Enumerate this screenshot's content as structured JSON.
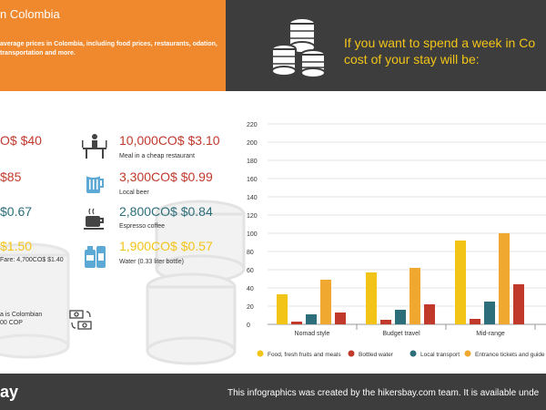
{
  "header": {
    "left_title": "n Colombia",
    "left_subtitle": "average prices in Colombia, including food prices, restaurants, odation, transportation and more.",
    "right_title_line1": "If you want to spend a week in Co",
    "right_title_line2": "cost of your stay will be:"
  },
  "left_prices": [
    {
      "price": "O$ $40",
      "color": "#c0392b"
    },
    {
      "price": "$85",
      "color": "#c0392b"
    },
    {
      "price": "$0.67",
      "color": "#2c6e7a"
    },
    {
      "price": "$1.50",
      "color": "#f2c418"
    }
  ],
  "left_notes": {
    "fare": "Fare: 4,700CO$ $1.40",
    "currency_line1": "a is Colombian",
    "currency_line2": "00 COP"
  },
  "items": [
    {
      "price": "10,000CO$ $3.10",
      "desc": "Meal in a cheap restaurant",
      "color": "#c0392b",
      "icon": "restaurant-icon"
    },
    {
      "price": "3,300CO$ $0.99",
      "desc": "Local beer",
      "color": "#c0392b",
      "icon": "beer-icon"
    },
    {
      "price": "2,800CO$ $0.84",
      "desc": "Espresso coffee",
      "color": "#2c6e7a",
      "icon": "coffee-icon"
    },
    {
      "price": "1,900CO$ $0.57",
      "desc": "Water (0.33 liter bottle)",
      "color": "#f2c418",
      "icon": "water-bottle-icon"
    }
  ],
  "chart_data": {
    "type": "bar",
    "categories": [
      "Nomad style",
      "Budget travel",
      "Mid-range"
    ],
    "series": [
      {
        "name": "Food, fresh fruits and meals",
        "color": "#f2c418",
        "values": [
          33,
          57,
          92
        ]
      },
      {
        "name": "Bottled water",
        "color": "#c0392b",
        "values": [
          3,
          5,
          6
        ]
      },
      {
        "name": "Local transport",
        "color": "#2c6e7a",
        "values": [
          11,
          16,
          25
        ]
      },
      {
        "name": "Entrance tickets and guide s",
        "color": "#f0a830",
        "values": [
          49,
          62,
          100
        ]
      },
      {
        "name": "",
        "color": "#c0392b",
        "values": [
          13,
          22,
          44
        ]
      }
    ],
    "ylim": [
      0,
      220
    ],
    "yticks": [
      0,
      20,
      40,
      60,
      80,
      100,
      120,
      140,
      160,
      180,
      200,
      220
    ],
    "grid": true,
    "legend_position": "bottom"
  },
  "footer": {
    "brand": "ay",
    "text": "This infographics was created by the hikersbay.com team. It is available unde"
  }
}
